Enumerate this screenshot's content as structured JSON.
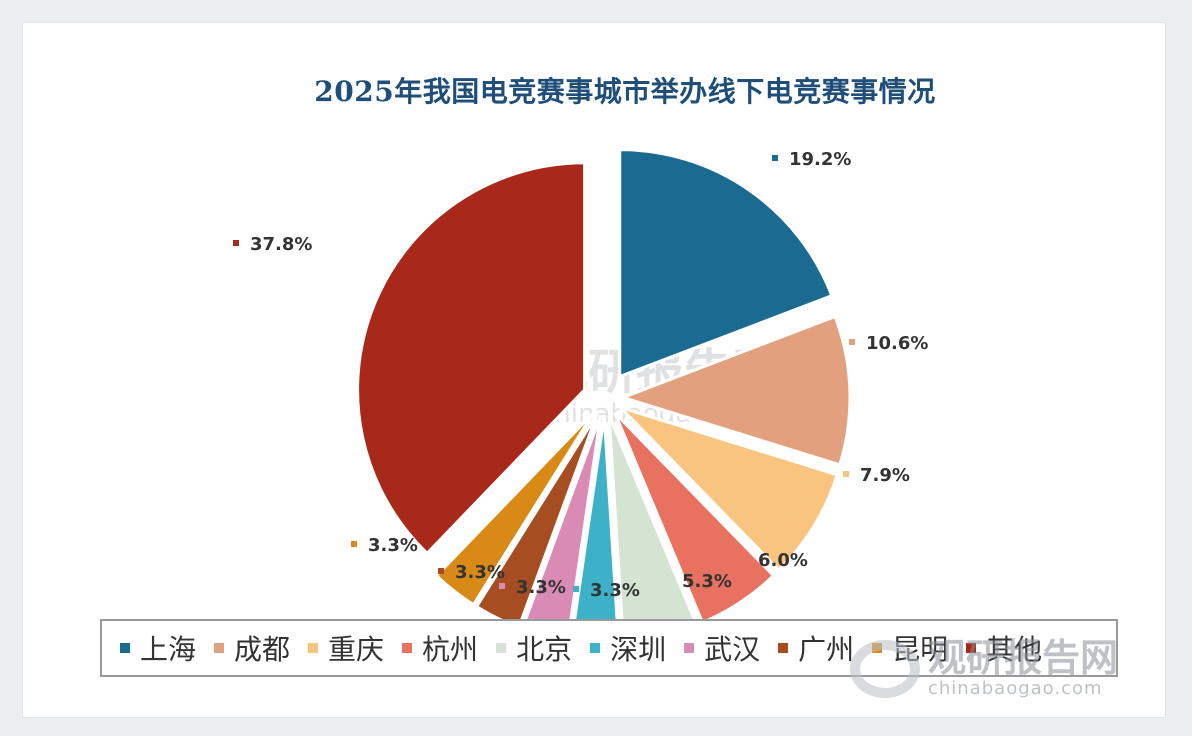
{
  "title": "2025年我国电竞赛事城市举办线下电竞赛事情况",
  "chart_data": {
    "type": "pie",
    "title": "2025年我国电竞赛事城市举办线下电竞赛事情况",
    "unit": "%",
    "categories": [
      "上海",
      "成都",
      "重庆",
      "杭州",
      "北京",
      "深圳",
      "武汉",
      "广州",
      "昆明",
      "其他"
    ],
    "values": [
      19.2,
      10.6,
      7.9,
      6.0,
      5.3,
      3.3,
      3.3,
      3.3,
      3.3,
      37.8
    ],
    "data_labels": [
      "19.2%",
      "10.6%",
      "7.9%",
      "6.0%",
      "5.3%",
      "3.3%",
      "3.3%",
      "3.3%",
      "3.3%",
      "37.8%"
    ],
    "colors": [
      "#1b6a91",
      "#e3a07e",
      "#f9c47f",
      "#e87160",
      "#d5e3d3",
      "#3db1c8",
      "#d98bb6",
      "#a64d22",
      "#d98a16",
      "#a8291a"
    ],
    "legend_position": "bottom",
    "exploded": true,
    "start": "top, clockwise"
  },
  "legend": {
    "items": [
      "上海",
      "成都",
      "重庆",
      "杭州",
      "北京",
      "深圳",
      "武汉",
      "广州",
      "昆明",
      "其他"
    ]
  },
  "watermark": {
    "chart_text": "观研报告网",
    "chart_url": "chinabaogao.com",
    "corner_text": "观研报告网",
    "corner_url": "chinabaogao.com"
  }
}
